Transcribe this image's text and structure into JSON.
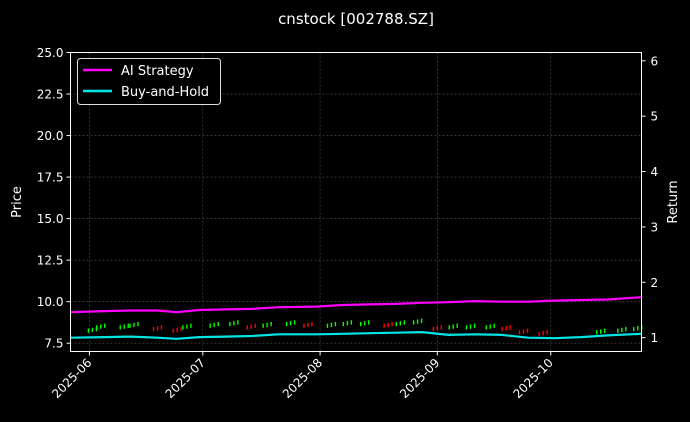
{
  "chart_data": {
    "type": "line",
    "title": "cnstock [002788.SZ]",
    "ylabel_left": "Price",
    "ylabel_right": "Return",
    "xlim": [
      "2025-05-27",
      "2025-10-25"
    ],
    "ylim_left": [
      7.0,
      25.0
    ],
    "ylim_right": [
      0.75,
      6.15
    ],
    "x_ticks": [
      "2025-06",
      "2025-07",
      "2025-08",
      "2025-09",
      "2025-10"
    ],
    "y_ticks_left": [
      "7.5",
      "10.0",
      "12.5",
      "15.0",
      "17.5",
      "20.0",
      "22.5",
      "25.0"
    ],
    "y_ticks_right": [
      "1",
      "2",
      "3",
      "4",
      "5",
      "6"
    ],
    "grid": true,
    "legend_placement": "top-left",
    "series": [
      {
        "name": "AI Strategy",
        "axis": "right",
        "color": "#ff00ff",
        "points": [
          [
            "2025-05-27",
            1.46
          ],
          [
            "2025-06-05",
            1.48
          ],
          [
            "2025-06-12",
            1.49
          ],
          [
            "2025-06-19",
            1.49
          ],
          [
            "2025-06-24",
            1.46
          ],
          [
            "2025-06-30",
            1.5
          ],
          [
            "2025-07-07",
            1.51
          ],
          [
            "2025-07-14",
            1.52
          ],
          [
            "2025-07-21",
            1.55
          ],
          [
            "2025-07-31",
            1.56
          ],
          [
            "2025-08-07",
            1.59
          ],
          [
            "2025-08-14",
            1.6
          ],
          [
            "2025-08-21",
            1.61
          ],
          [
            "2025-08-28",
            1.63
          ],
          [
            "2025-09-04",
            1.64
          ],
          [
            "2025-09-11",
            1.66
          ],
          [
            "2025-09-18",
            1.65
          ],
          [
            "2025-09-25",
            1.65
          ],
          [
            "2025-10-02",
            1.67
          ],
          [
            "2025-10-09",
            1.68
          ],
          [
            "2025-10-16",
            1.69
          ],
          [
            "2025-10-25",
            1.73
          ]
        ]
      },
      {
        "name": "Buy-and-Hold",
        "axis": "right",
        "color": "#00e5e5",
        "points": [
          [
            "2025-05-27",
            1.0
          ],
          [
            "2025-06-05",
            1.01
          ],
          [
            "2025-06-12",
            1.02
          ],
          [
            "2025-06-19",
            1.0
          ],
          [
            "2025-06-24",
            0.98
          ],
          [
            "2025-06-30",
            1.01
          ],
          [
            "2025-07-07",
            1.02
          ],
          [
            "2025-07-14",
            1.03
          ],
          [
            "2025-07-21",
            1.06
          ],
          [
            "2025-07-31",
            1.06
          ],
          [
            "2025-08-07",
            1.07
          ],
          [
            "2025-08-14",
            1.08
          ],
          [
            "2025-08-21",
            1.09
          ],
          [
            "2025-08-28",
            1.1
          ],
          [
            "2025-09-04",
            1.05
          ],
          [
            "2025-09-11",
            1.06
          ],
          [
            "2025-09-18",
            1.05
          ],
          [
            "2025-09-25",
            1.0
          ],
          [
            "2025-10-02",
            0.99
          ],
          [
            "2025-10-09",
            1.01
          ],
          [
            "2025-10-16",
            1.04
          ],
          [
            "2025-10-25",
            1.07
          ]
        ]
      }
    ],
    "candles": {
      "axis": "left",
      "up_color": "#00ff00",
      "down_color": "#ff0000",
      "points": [
        [
          "2025-06-02",
          8.3
        ],
        [
          "2025-06-04",
          8.5
        ],
        [
          "2025-06-10",
          8.5
        ],
        [
          "2025-06-13",
          8.6
        ],
        [
          "2025-06-19",
          8.4
        ],
        [
          "2025-06-24",
          8.3
        ],
        [
          "2025-06-27",
          8.5
        ],
        [
          "2025-07-04",
          8.6
        ],
        [
          "2025-07-09",
          8.7
        ],
        [
          "2025-07-14",
          8.5
        ],
        [
          "2025-07-18",
          8.6
        ],
        [
          "2025-07-24",
          8.7
        ],
        [
          "2025-07-29",
          8.6
        ],
        [
          "2025-08-04",
          8.6
        ],
        [
          "2025-08-08",
          8.7
        ],
        [
          "2025-08-13",
          8.7
        ],
        [
          "2025-08-19",
          8.6
        ],
        [
          "2025-08-22",
          8.7
        ],
        [
          "2025-08-27",
          8.8
        ],
        [
          "2025-09-01",
          8.4
        ],
        [
          "2025-09-05",
          8.5
        ],
        [
          "2025-09-10",
          8.5
        ],
        [
          "2025-09-15",
          8.5
        ],
        [
          "2025-09-19",
          8.4
        ],
        [
          "2025-09-24",
          8.2
        ],
        [
          "2025-09-29",
          8.1
        ],
        [
          "2025-10-14",
          8.2
        ],
        [
          "2025-10-20",
          8.3
        ],
        [
          "2025-10-24",
          8.4
        ]
      ]
    }
  }
}
